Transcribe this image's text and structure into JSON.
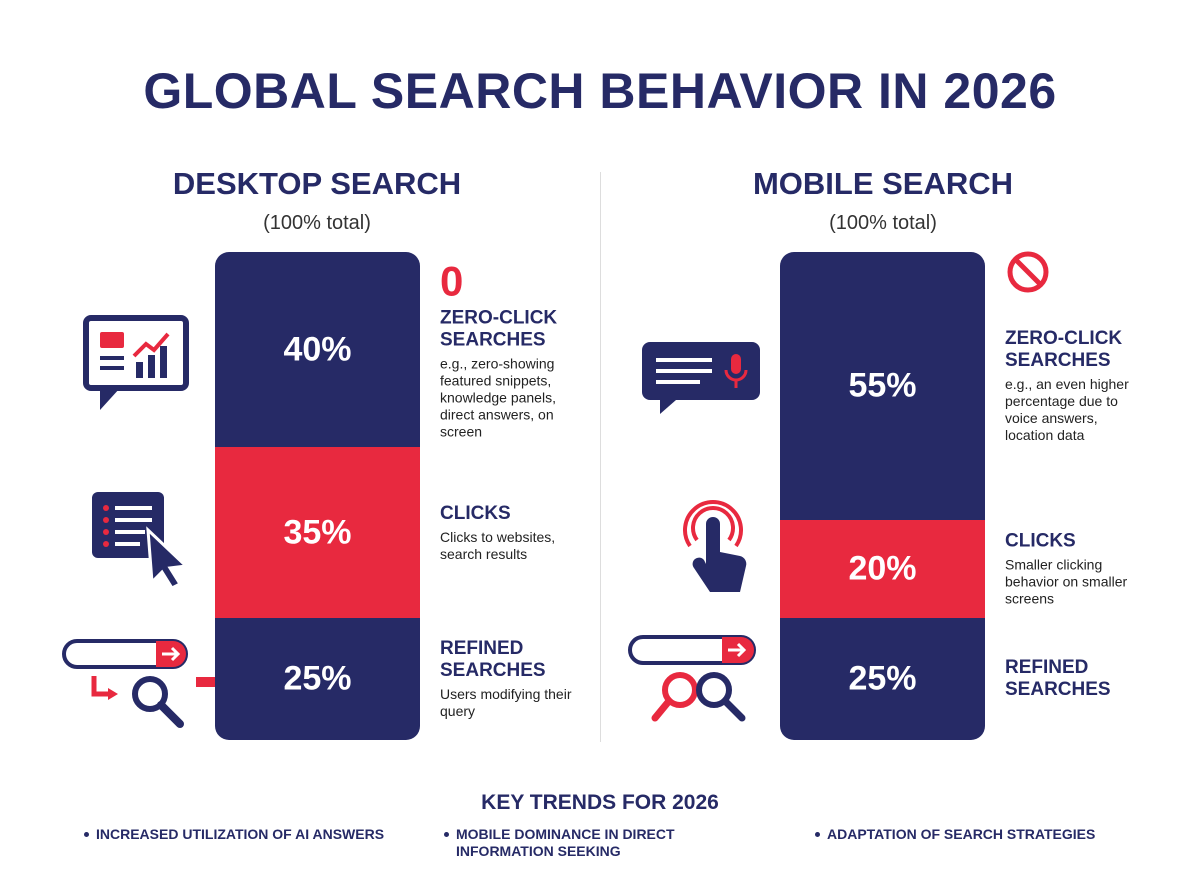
{
  "title": "GLOBAL SEARCH BEHAVIOR IN 2026",
  "chart_data": [
    {
      "type": "stacked_bar",
      "title": "DESKTOP SEARCH",
      "subtitle": "(100% total)",
      "series": [
        {
          "name": "ZERO-CLICK SEARCHES",
          "color": "#262a66",
          "values": [
            40
          ],
          "value_labels": [
            "40%"
          ],
          "badge": "0",
          "description": "e.g., zero-showing featured snippets, knowledge panels, direct answers, on screen"
        },
        {
          "name": "CLICKS",
          "color": "#e8293f",
          "values": [
            35
          ],
          "value_labels": [
            "35%"
          ],
          "description": "Clicks to websites, search results"
        },
        {
          "name": "REFINED SEARCHES",
          "color": "#262a66",
          "values": [
            25
          ],
          "value_labels": [
            "25%"
          ],
          "description": "Users modifying their query"
        }
      ]
    },
    {
      "type": "stacked_bar",
      "title": "MOBILE SEARCH",
      "subtitle": "(100% total)",
      "series": [
        {
          "name": "ZERO-CLICK SEARCHES",
          "color": "#262a66",
          "values": [
            55
          ],
          "value_labels": [
            "55%"
          ],
          "description": "e.g., an even higher percentage due to voice answers, location data"
        },
        {
          "name": "CLICKS",
          "color": "#e8293f",
          "values": [
            20
          ],
          "value_labels": [
            "20%"
          ],
          "description": "Smaller clicking behavior on smaller screens"
        },
        {
          "name": "REFINED SEARCHES",
          "color": "#262a66",
          "values": [
            25
          ],
          "value_labels": [
            "25%"
          ]
        }
      ]
    }
  ],
  "key_trends": {
    "title": "KEY TRENDS FOR 2026",
    "items": [
      "INCREASED UTILIZATION OF AI ANSWERS",
      "MOBILE DOMINANCE IN DIRECT INFORMATION SEEKING",
      "ADAPTATION OF SEARCH STRATEGIES"
    ]
  }
}
